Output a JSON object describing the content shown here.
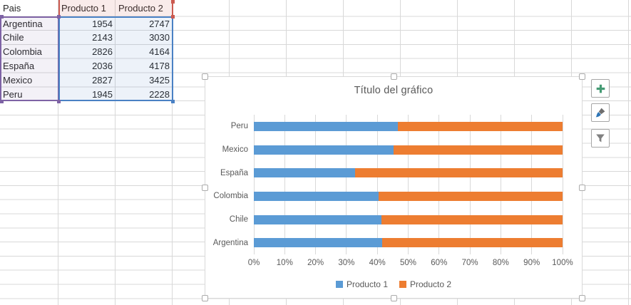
{
  "sheet": {
    "table": {
      "headers": [
        "Pais",
        "Producto 1",
        "Producto 2"
      ],
      "rows": [
        [
          "Argentina",
          "1954",
          "2747"
        ],
        [
          "Chile",
          "2143",
          "3030"
        ],
        [
          "Colombia",
          "2826",
          "4164"
        ],
        [
          "España",
          "2036",
          "4178"
        ],
        [
          "Mexico",
          "2827",
          "3425"
        ],
        [
          "Peru",
          "1945",
          "2228"
        ]
      ]
    },
    "selection_colors": {
      "categories_border": "#7E63A5",
      "series_names_border": "#CB5A50",
      "values_border": "#4A81C4",
      "gridline": "#D8D8D8"
    }
  },
  "chart_data": {
    "type": "bar",
    "subtype": "100-percent-stacked-horizontal",
    "title": "Título del gráfico",
    "category_order": "top-to-bottom",
    "categories": [
      "Peru",
      "Mexico",
      "España",
      "Colombia",
      "Chile",
      "Argentina"
    ],
    "series": [
      {
        "name": "Producto 1",
        "color": "#5B9BD5",
        "values": [
          1945,
          2827,
          2036,
          2826,
          2143,
          1954
        ]
      },
      {
        "name": "Producto 2",
        "color": "#ED7D31",
        "values": [
          2228,
          3425,
          4178,
          4164,
          3030,
          2747
        ]
      }
    ],
    "x_ticks": [
      "0%",
      "10%",
      "20%",
      "30%",
      "40%",
      "50%",
      "60%",
      "70%",
      "80%",
      "90%",
      "100%"
    ],
    "xlim": [
      0,
      1
    ],
    "grid": true,
    "legend_position": "bottom",
    "text_color": "#595959",
    "plot_gridline_color": "#D9D9D9"
  },
  "chart_tools": {
    "add_icon_color": "#459B74",
    "brush_tip_color": "#2E75B6",
    "brush_handle_color": "#6E6E6E",
    "filter_icon_color": "#808080"
  }
}
